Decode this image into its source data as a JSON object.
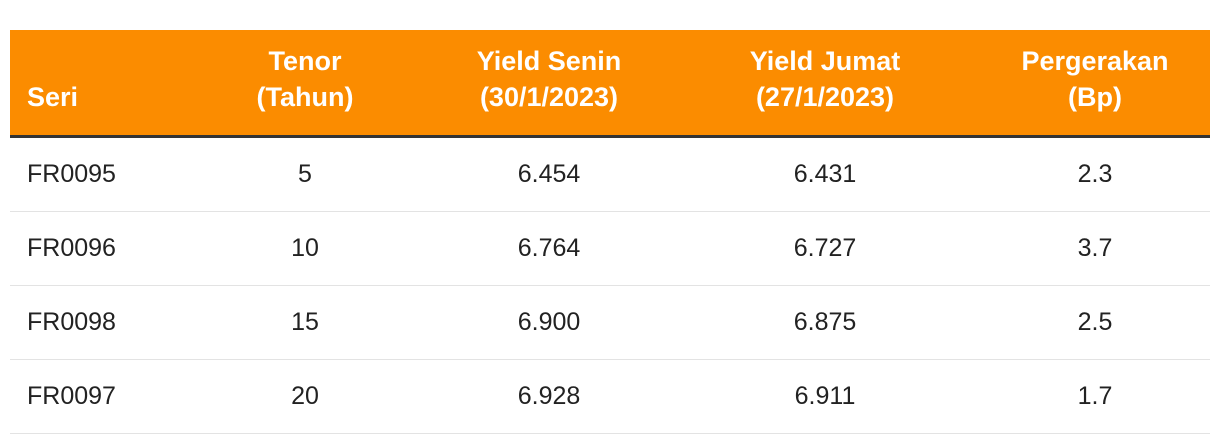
{
  "table": {
    "header": [
      [
        "Seri"
      ],
      [
        "Tenor",
        "(Tahun)"
      ],
      [
        "Yield Senin",
        "(30/1/2023)"
      ],
      [
        "Yield Jumat",
        "(27/1/2023)"
      ],
      [
        "Pergerakan",
        "(Bp)"
      ]
    ],
    "rows": [
      [
        "FR0095",
        "5",
        "6.454",
        "6.431",
        "2.3"
      ],
      [
        "FR0096",
        "10",
        "6.764",
        "6.727",
        "3.7"
      ],
      [
        "FR0098",
        "15",
        "6.900",
        "6.875",
        "2.5"
      ],
      [
        "FR0097",
        "20",
        "6.928",
        "6.911",
        "1.7"
      ]
    ]
  }
}
